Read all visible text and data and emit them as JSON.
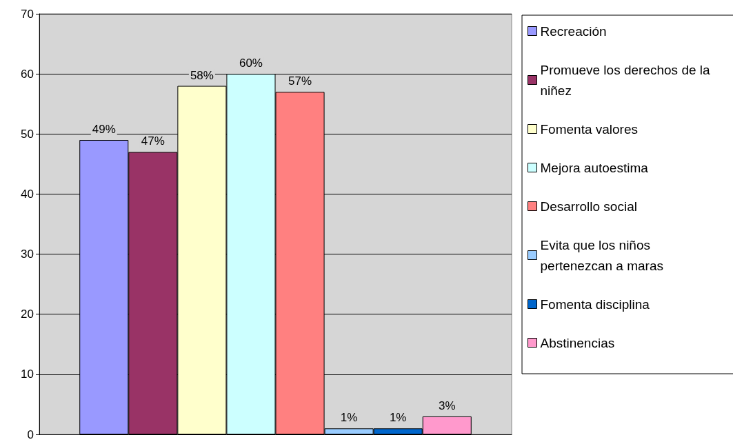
{
  "chart_data": {
    "type": "bar",
    "categories": [
      null
    ],
    "series": [
      {
        "name": "Recreación",
        "color": "#9999ff",
        "values": [
          49
        ],
        "value_labels": [
          "49%"
        ]
      },
      {
        "name": "Promueve los derechos de la niñez",
        "color": "#993366",
        "values": [
          47
        ],
        "value_labels": [
          "47%"
        ]
      },
      {
        "name": "Fomenta valores",
        "color": "#ffffcc",
        "values": [
          58
        ],
        "value_labels": [
          "58%"
        ]
      },
      {
        "name": "Mejora autoestima",
        "color": "#ccffff",
        "values": [
          60
        ],
        "value_labels": [
          "60%"
        ]
      },
      {
        "name": "Desarrollo social",
        "color": "#ff8080",
        "values": [
          57
        ],
        "value_labels": [
          "57%"
        ]
      },
      {
        "name": "Evita que los niños pertenezcan a maras",
        "color": "#99ccff",
        "values": [
          1
        ],
        "value_labels": [
          "1%"
        ]
      },
      {
        "name": "Fomenta disciplina",
        "color": "#0066cc",
        "values": [
          1
        ],
        "value_labels": [
          "1%"
        ]
      },
      {
        "name": "Abstinencias",
        "color": "#ff99cc",
        "values": [
          3
        ],
        "value_labels": [
          "3%"
        ]
      }
    ],
    "ylim": [
      0,
      70
    ],
    "yticks": [
      0,
      10,
      20,
      30,
      40,
      50,
      60,
      70
    ],
    "grid": "y",
    "legend": "right"
  }
}
